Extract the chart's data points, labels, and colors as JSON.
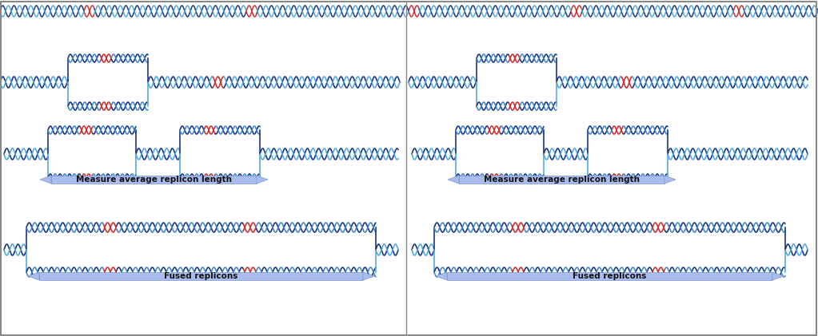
{
  "bg_color": "#ffffff",
  "dna_dark_blue": "#1a3585",
  "dna_light_blue": "#4488cc",
  "dna_red": "#cc3333",
  "dna_cyan": "#55aadd",
  "arrow_color": "#7799cc",
  "arrow_face": "#8899cc",
  "arrow_face_light": "#aabbee",
  "label_measure": "Measure average replicon length",
  "label_fused": "Fused replicons",
  "fig_width": 10.23,
  "fig_height": 4.21,
  "border_color": "#888888"
}
